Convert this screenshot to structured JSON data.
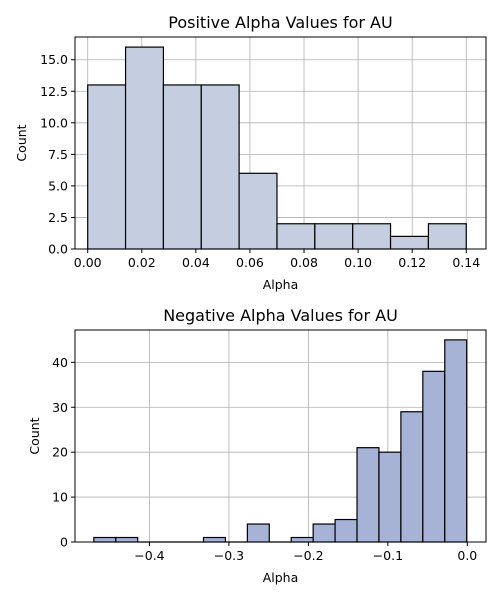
{
  "chart_data": [
    {
      "type": "histogram",
      "title": "Positive Alpha Values for AU",
      "xlabel": "Alpha",
      "ylabel": "Count",
      "xlim": [
        -0.0047,
        0.1473
      ],
      "ylim": [
        0,
        16.8
      ],
      "xticks": [
        0.0,
        0.02,
        0.04,
        0.06,
        0.08,
        0.1,
        0.12,
        0.14
      ],
      "xtick_labels": [
        "0.00",
        "0.02",
        "0.04",
        "0.06",
        "0.08",
        "0.10",
        "0.12",
        "0.14"
      ],
      "yticks": [
        0.0,
        2.5,
        5.0,
        7.5,
        10.0,
        12.5,
        15.0
      ],
      "ytick_labels": [
        "0.0",
        "2.5",
        "5.0",
        "7.5",
        "10.0",
        "12.5",
        "15.0"
      ],
      "grid": true,
      "bar_color": "#c5cee1",
      "edge_color": "#000000",
      "bins": [
        {
          "x0": 0.0,
          "x1": 0.014,
          "count": 13
        },
        {
          "x0": 0.014,
          "x1": 0.028,
          "count": 16
        },
        {
          "x0": 0.028,
          "x1": 0.042,
          "count": 13
        },
        {
          "x0": 0.042,
          "x1": 0.056,
          "count": 13
        },
        {
          "x0": 0.056,
          "x1": 0.07,
          "count": 6
        },
        {
          "x0": 0.07,
          "x1": 0.084,
          "count": 2
        },
        {
          "x0": 0.084,
          "x1": 0.098,
          "count": 2
        },
        {
          "x0": 0.098,
          "x1": 0.112,
          "count": 2
        },
        {
          "x0": 0.112,
          "x1": 0.126,
          "count": 1
        },
        {
          "x0": 0.126,
          "x1": 0.14,
          "count": 2
        }
      ]
    },
    {
      "type": "histogram",
      "title": "Negative Alpha Values for AU",
      "xlabel": "Alpha",
      "ylabel": "Count",
      "xlim": [
        -0.4937,
        0.0235
      ],
      "ylim": [
        0,
        47.2
      ],
      "xticks": [
        -0.4,
        -0.3,
        -0.2,
        -0.1,
        0.0
      ],
      "xtick_labels": [
        "−0.4",
        "−0.3",
        "−0.2",
        "−0.1",
        "0.0"
      ],
      "yticks": [
        0,
        10,
        20,
        30,
        40
      ],
      "ytick_labels": [
        "0",
        "10",
        "20",
        "30",
        "40"
      ],
      "grid": true,
      "bar_color": "#a6b2d6",
      "edge_color": "#000000",
      "bins": [
        {
          "x0": -0.47,
          "x1": -0.4424,
          "count": 1
        },
        {
          "x0": -0.4424,
          "x1": -0.4148,
          "count": 1
        },
        {
          "x0": -0.4148,
          "x1": -0.3872,
          "count": 0
        },
        {
          "x0": -0.3872,
          "x1": -0.3596,
          "count": 0
        },
        {
          "x0": -0.3596,
          "x1": -0.332,
          "count": 0
        },
        {
          "x0": -0.332,
          "x1": -0.3044,
          "count": 1
        },
        {
          "x0": -0.3044,
          "x1": -0.2768,
          "count": 0
        },
        {
          "x0": -0.2768,
          "x1": -0.2492,
          "count": 4
        },
        {
          "x0": -0.2492,
          "x1": -0.2216,
          "count": 0
        },
        {
          "x0": -0.2216,
          "x1": -0.194,
          "count": 1
        },
        {
          "x0": -0.194,
          "x1": -0.1664,
          "count": 4
        },
        {
          "x0": -0.1664,
          "x1": -0.1388,
          "count": 5
        },
        {
          "x0": -0.1388,
          "x1": -0.1112,
          "count": 21
        },
        {
          "x0": -0.1112,
          "x1": -0.0836,
          "count": 20
        },
        {
          "x0": -0.0836,
          "x1": -0.056,
          "count": 29
        },
        {
          "x0": -0.056,
          "x1": -0.0284,
          "count": 38
        },
        {
          "x0": -0.0284,
          "x1": -0.0008,
          "count": 45
        }
      ]
    }
  ]
}
